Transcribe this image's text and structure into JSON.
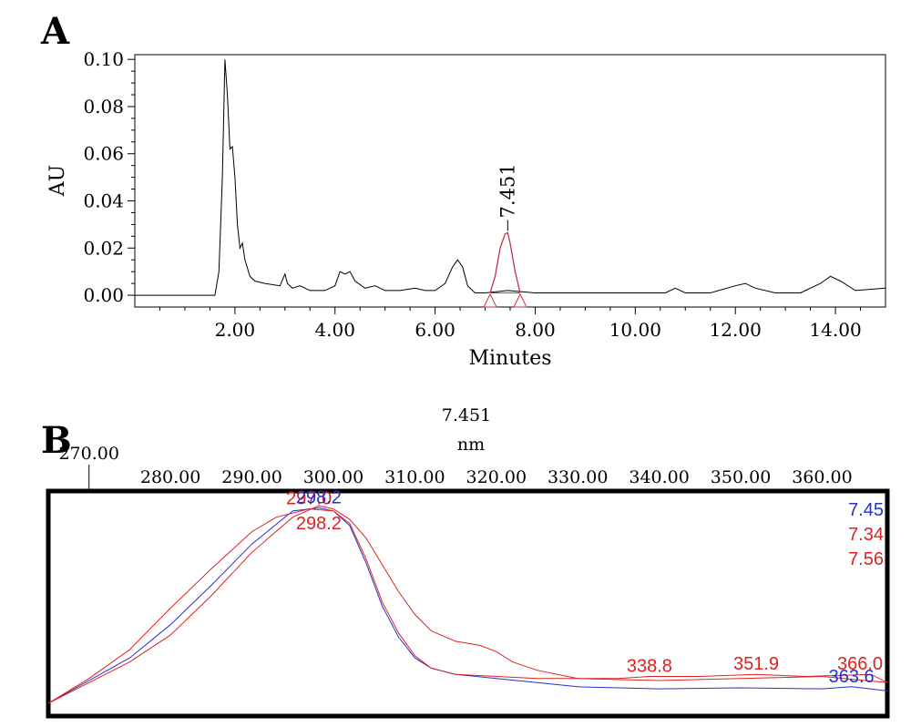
{
  "panel_a": {
    "label": "A",
    "chart_data": {
      "type": "line",
      "xlabel": "Minutes",
      "ylabel": "AU",
      "xlim": [
        0,
        15
      ],
      "ylim": [
        -0.005,
        0.102
      ],
      "x_ticks": [
        2,
        4,
        6,
        8,
        10,
        12,
        14
      ],
      "x_tick_labels": [
        "2.00",
        "4.00",
        "6.00",
        "8.00",
        "10.00",
        "12.00",
        "14.00"
      ],
      "y_ticks": [
        0,
        0.02,
        0.04,
        0.06,
        0.08,
        0.1
      ],
      "y_tick_labels": [
        "0.00",
        "0.02",
        "0.04",
        "0.06",
        "0.08",
        "0.10"
      ],
      "series": [
        {
          "color": "#000000",
          "x": [
            0.0,
            1.6,
            1.68,
            1.75,
            1.8,
            1.85,
            1.9,
            1.95,
            2.0,
            2.05,
            2.1,
            2.15,
            2.2,
            2.3,
            2.4,
            2.6,
            2.9,
            3.0,
            3.05,
            3.15,
            3.3,
            3.5,
            3.8,
            4.0,
            4.1,
            4.2,
            4.3,
            4.4,
            4.6,
            4.8,
            5.0,
            5.3,
            5.6,
            5.8,
            6.0,
            6.2,
            6.35,
            6.45,
            6.55,
            6.65,
            6.8,
            7.0,
            7.45,
            8.0,
            9.0,
            10.0,
            10.6,
            10.8,
            11.0,
            11.5,
            12.0,
            12.2,
            12.4,
            12.8,
            13.3,
            13.7,
            13.9,
            14.1,
            14.4,
            15.0
          ],
          "y": [
            0.0,
            0.0,
            0.01,
            0.05,
            0.1,
            0.085,
            0.062,
            0.063,
            0.05,
            0.03,
            0.02,
            0.022,
            0.015,
            0.008,
            0.006,
            0.005,
            0.004,
            0.009,
            0.005,
            0.003,
            0.004,
            0.002,
            0.002,
            0.004,
            0.01,
            0.009,
            0.01,
            0.006,
            0.003,
            0.004,
            0.002,
            0.002,
            0.003,
            0.002,
            0.002,
            0.005,
            0.012,
            0.015,
            0.012,
            0.004,
            0.001,
            0.001,
            0.002,
            0.001,
            0.001,
            0.001,
            0.001,
            0.003,
            0.001,
            0.001,
            0.004,
            0.005,
            0.003,
            0.001,
            0.001,
            0.005,
            0.008,
            0.006,
            0.002,
            0.003
          ]
        },
        {
          "color": "#c0354a",
          "x": [
            7.1,
            7.2,
            7.3,
            7.4,
            7.45,
            7.5,
            7.6,
            7.7
          ],
          "y": [
            0.001,
            0.008,
            0.02,
            0.026,
            0.0265,
            0.022,
            0.01,
            0.001
          ]
        }
      ],
      "peak_marker_color": "#c0354a",
      "peak_markers_x": [
        7.1,
        7.7
      ],
      "annotations": [
        {
          "x": 7.451,
          "y": 0.0265,
          "text": "7.451"
        }
      ]
    }
  },
  "panel_b": {
    "label": "B",
    "header": "7.451",
    "unit": "nm",
    "chart_data": {
      "type": "line",
      "xlim": [
        265,
        368
      ],
      "x_tick_labels_upper": [
        "270.00"
      ],
      "x_tick_labels_lower": [
        "280.00",
        "290.00",
        "300.00",
        "310.00",
        "320.00",
        "330.00",
        "340.00",
        "350.00",
        "360.00"
      ],
      "x_ticks_upper": [
        270
      ],
      "x_ticks_lower": [
        280,
        290,
        300,
        310,
        320,
        330,
        340,
        350,
        360
      ],
      "ylim": [
        0,
        1
      ],
      "series": [
        {
          "name": "7.45",
          "color": "#2233cc",
          "x": [
            265,
            270,
            275,
            280,
            285,
            290,
            295,
            298.2,
            300,
            302,
            304,
            306,
            308,
            310,
            312,
            315,
            320,
            325,
            330,
            340,
            350,
            360,
            363.6,
            368
          ],
          "y": [
            0.0,
            0.11,
            0.22,
            0.38,
            0.57,
            0.77,
            0.93,
            0.945,
            0.93,
            0.86,
            0.68,
            0.47,
            0.32,
            0.22,
            0.17,
            0.14,
            0.12,
            0.1,
            0.08,
            0.07,
            0.075,
            0.07,
            0.08,
            0.06
          ]
        },
        {
          "name": "7.34",
          "color": "#dd2222",
          "x": [
            265,
            270,
            275,
            280,
            285,
            290,
            293,
            297,
            300,
            302,
            304,
            306,
            308,
            310,
            312,
            315,
            320,
            325,
            330,
            335,
            338.8,
            345,
            351.9,
            358,
            366,
            368
          ],
          "y": [
            0.0,
            0.12,
            0.26,
            0.46,
            0.65,
            0.83,
            0.9,
            0.94,
            0.93,
            0.87,
            0.7,
            0.49,
            0.34,
            0.23,
            0.17,
            0.14,
            0.13,
            0.12,
            0.12,
            0.12,
            0.13,
            0.13,
            0.14,
            0.13,
            0.14,
            0.1
          ]
        },
        {
          "name": "7.56",
          "color": "#dd2222",
          "x": [
            265,
            270,
            275,
            280,
            285,
            290,
            295,
            298.2,
            300,
            302,
            304,
            306,
            308,
            310,
            312,
            315,
            318,
            320,
            322,
            325,
            330,
            340,
            350,
            360,
            368
          ],
          "y": [
            0.0,
            0.1,
            0.2,
            0.33,
            0.52,
            0.73,
            0.9,
            0.955,
            0.94,
            0.89,
            0.8,
            0.67,
            0.54,
            0.43,
            0.35,
            0.3,
            0.28,
            0.25,
            0.2,
            0.16,
            0.12,
            0.11,
            0.12,
            0.13,
            0.1
          ]
        }
      ],
      "legend": [
        {
          "text": "7.45",
          "color": "#2233cc"
        },
        {
          "text": "7.34",
          "color": "#dd2222"
        },
        {
          "text": "7.56",
          "color": "#dd2222"
        }
      ],
      "annotations": [
        {
          "x": 297.0,
          "y": 0.94,
          "text": "297.0",
          "color": "#dd2222",
          "pos": "above"
        },
        {
          "x": 298.2,
          "y": 0.945,
          "text": "298.2",
          "color": "#2233cc",
          "pos": "above"
        },
        {
          "x": 298.2,
          "y": 0.955,
          "text": "298.2",
          "color": "#dd2222",
          "pos": "below"
        },
        {
          "x": 338.8,
          "y": 0.13,
          "text": "338.8",
          "color": "#dd2222",
          "pos": "above"
        },
        {
          "x": 351.9,
          "y": 0.14,
          "text": "351.9",
          "color": "#dd2222",
          "pos": "above"
        },
        {
          "x": 366.0,
          "y": 0.14,
          "text": "366.0",
          "color": "#dd2222",
          "pos": "above"
        },
        {
          "x": 363.6,
          "y": 0.08,
          "text": "363.6",
          "color": "#2233cc",
          "pos": "above"
        }
      ]
    }
  }
}
